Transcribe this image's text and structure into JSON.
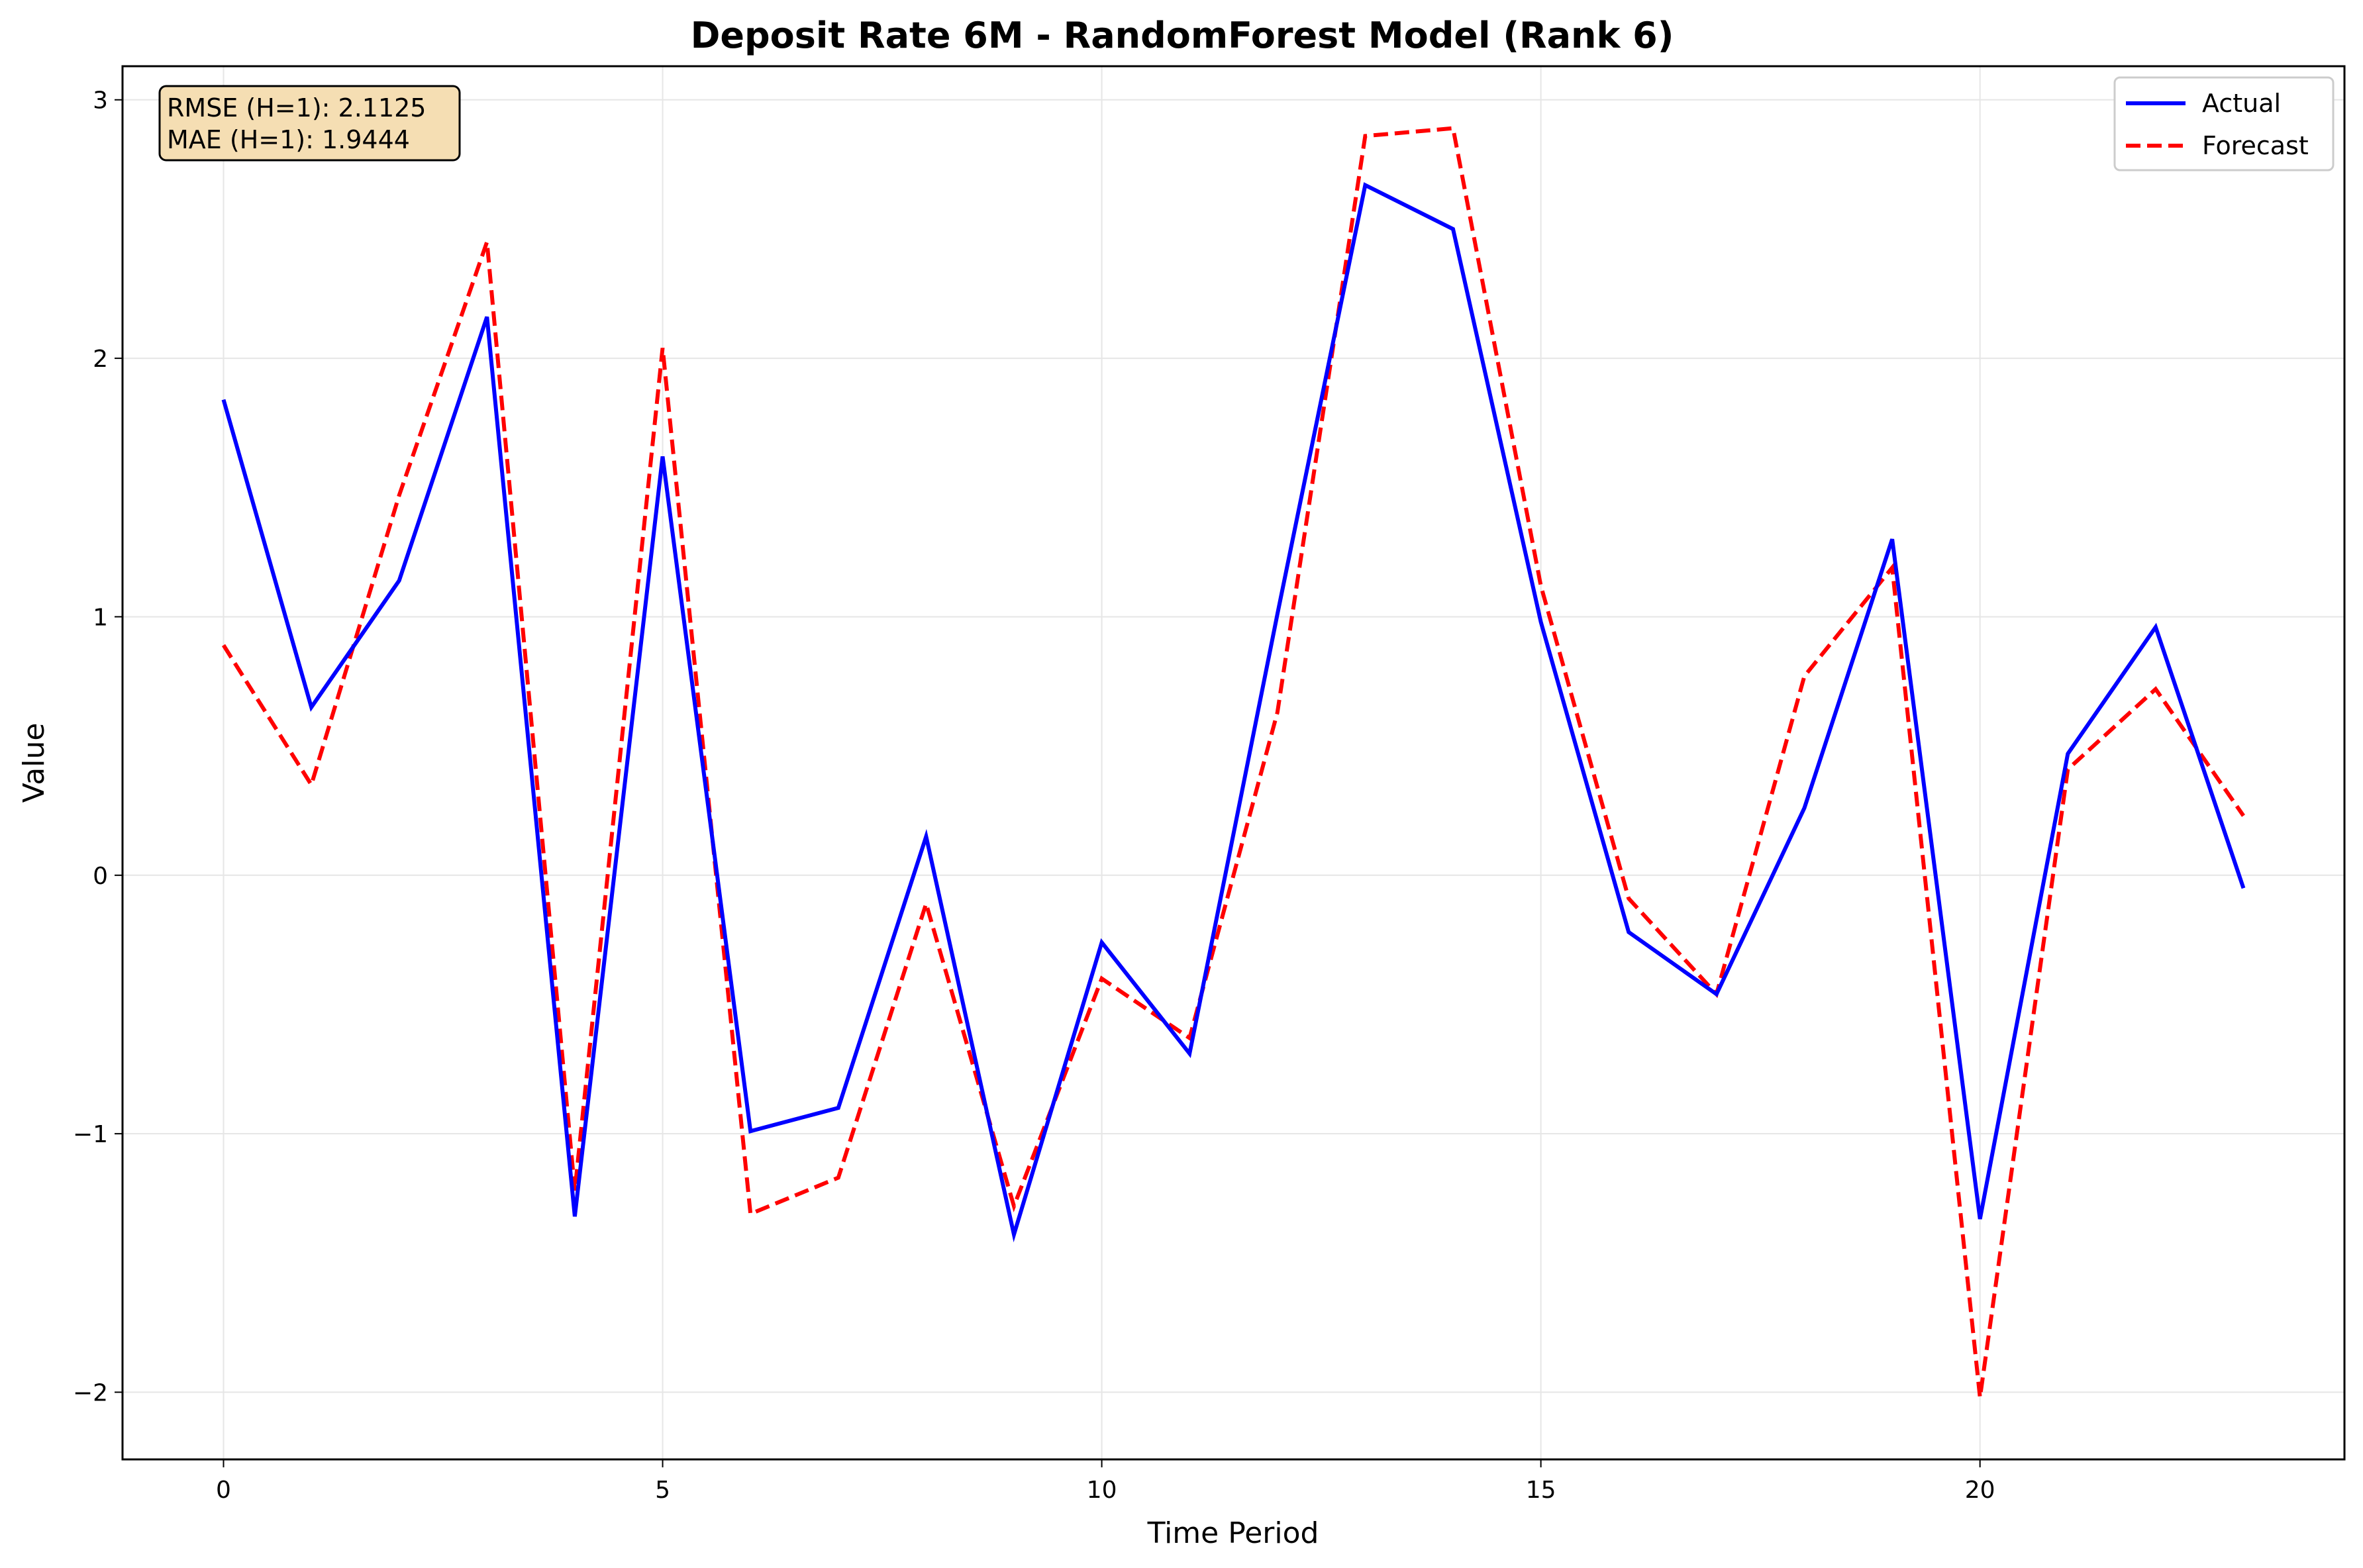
{
  "chart_data": {
    "type": "line",
    "title": "Deposit Rate 6M - RandomForest Model (Rank 6)",
    "xlabel": "Time Period",
    "ylabel": "Value",
    "xlim": [
      -1.15,
      24.15
    ],
    "ylim": [
      -2.26,
      3.13
    ],
    "xticks": [
      0,
      5,
      10,
      15,
      20
    ],
    "xtick_labels": [
      "0",
      "5",
      "10",
      "15",
      "20"
    ],
    "yticks": [
      -2,
      -1,
      0,
      1,
      2,
      3
    ],
    "ytick_labels": [
      "−2",
      "−1",
      "0",
      "1",
      "2",
      "3"
    ],
    "grid": true,
    "legend_position": "top-right",
    "metrics": [
      "RMSE (H=1): 2.1125",
      "MAE (H=1): 1.9444"
    ],
    "x": [
      0,
      1,
      2,
      3,
      4,
      5,
      6,
      7,
      8,
      9,
      10,
      11,
      12,
      13,
      14,
      15,
      16,
      17,
      18,
      19,
      20,
      21,
      22,
      23
    ],
    "series": [
      {
        "name": "Actual",
        "color": "#0000ff",
        "style": "solid",
        "values": [
          1.84,
          0.65,
          1.14,
          2.16,
          -1.32,
          1.62,
          -0.99,
          -0.9,
          0.15,
          -1.39,
          -0.26,
          -0.69,
          1.01,
          2.67,
          2.5,
          0.98,
          -0.22,
          -0.46,
          0.26,
          1.3,
          -1.33,
          0.47,
          0.96,
          -0.05
        ]
      },
      {
        "name": "Forecast",
        "color": "#ff0000",
        "style": "dashed",
        "values": [
          0.89,
          0.35,
          1.47,
          2.45,
          -1.22,
          2.04,
          -1.31,
          -1.17,
          -0.11,
          -1.28,
          -0.4,
          -0.63,
          0.63,
          2.86,
          2.89,
          1.12,
          -0.09,
          -0.46,
          0.77,
          1.19,
          -2.02,
          0.41,
          0.72,
          0.23
        ]
      }
    ]
  }
}
